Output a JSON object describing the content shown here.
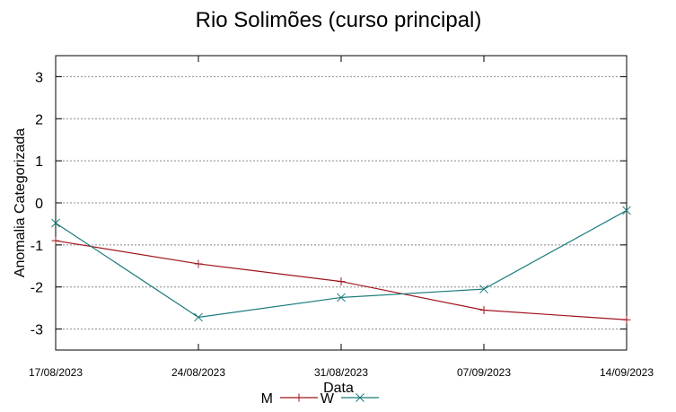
{
  "chart_data": {
    "type": "line",
    "title": "Rio Solimões (curso principal)",
    "xlabel": "Data",
    "ylabel": "Anomalia Categorizada",
    "x": [
      "17/08/2023",
      "24/08/2023",
      "31/08/2023",
      "07/09/2023",
      "14/09/2023"
    ],
    "ylim": [
      -3.5,
      3.5
    ],
    "yticks": [
      -3,
      -2,
      -1,
      0,
      1,
      2,
      3
    ],
    "grid": true,
    "legend_position": "bottom",
    "series": [
      {
        "name": "M",
        "marker": "+",
        "color": "#a0141e",
        "values": [
          -0.9,
          -1.45,
          -1.87,
          -2.55,
          -2.78
        ]
      },
      {
        "name": "W",
        "marker": "x",
        "color": "#1b7b7b",
        "values": [
          -0.48,
          -2.72,
          -2.25,
          -2.05,
          -0.18
        ]
      }
    ]
  }
}
